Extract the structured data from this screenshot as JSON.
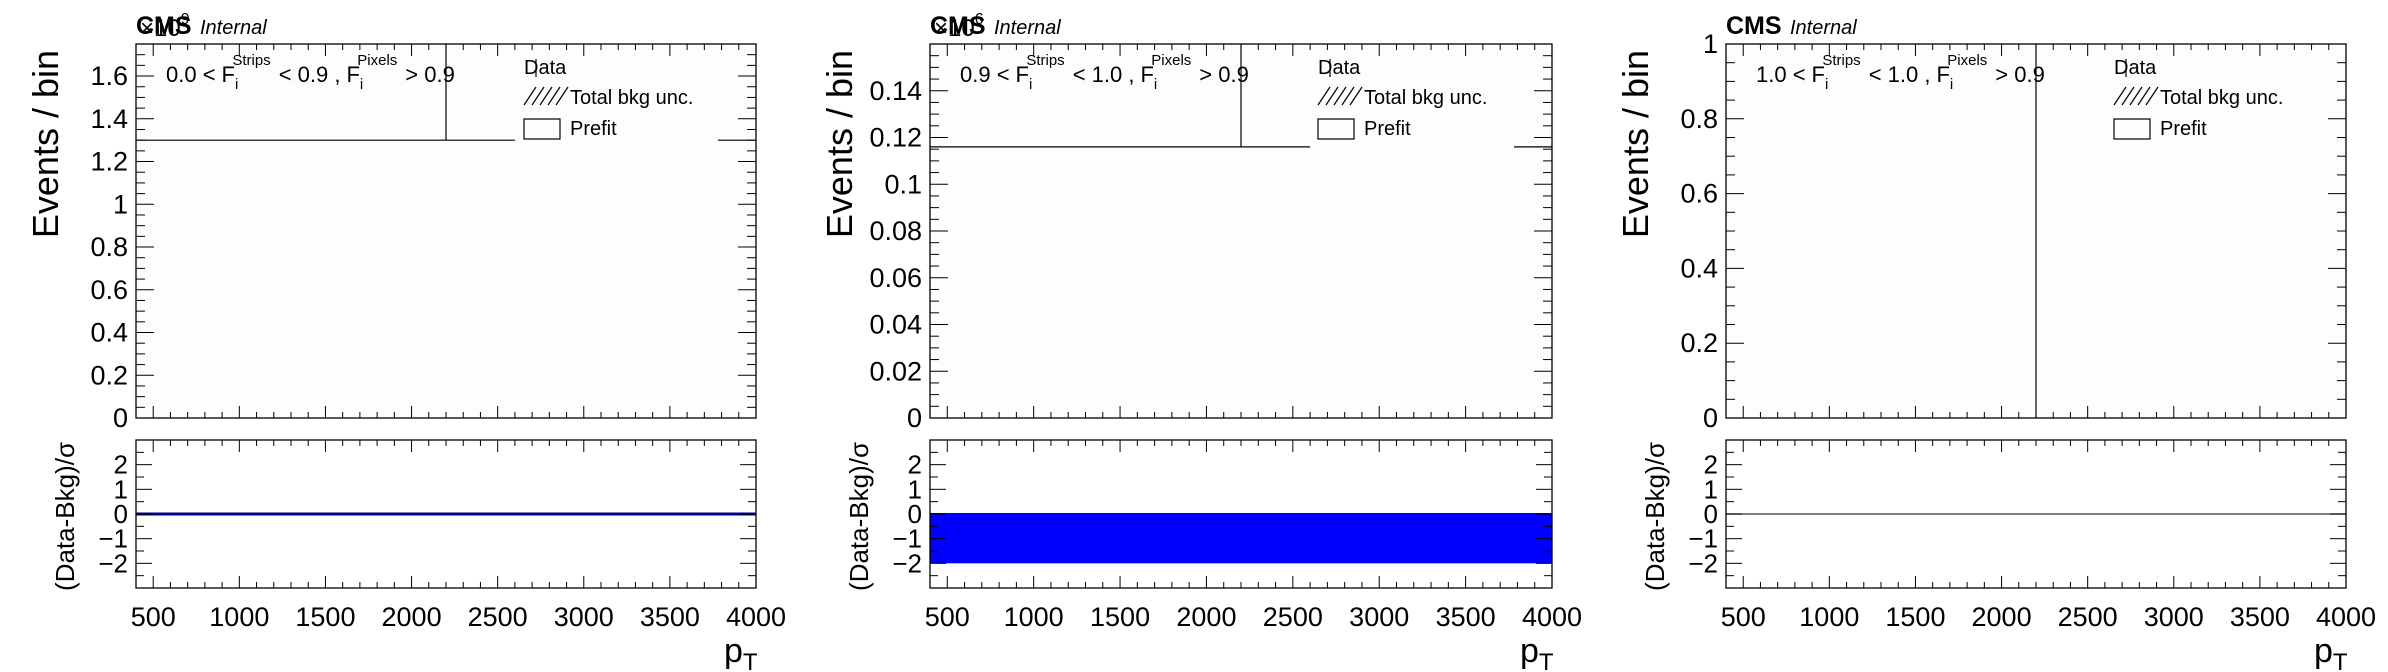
{
  "colors": {
    "frame": "#000000",
    "ratio_band": "#0000ff",
    "ratio_line": "#00008b",
    "plot_bg": "#fdfdfd"
  },
  "chart_data": [
    {
      "type": "line",
      "panel": "left",
      "cms_label": "CMS",
      "internal_label": "Internal",
      "exponent_label": "×10",
      "exponent_power": "9",
      "region": {
        "pre": "0.0 <",
        "F": "F",
        "sub": "i",
        "sup1": "Strips",
        "mid": "< 0.9 ,",
        "sup2": "Pixels",
        "post": "> 0.9"
      },
      "legend": {
        "data": "Data",
        "total": "Total bkg unc.",
        "prefit": "Prefit"
      },
      "ylabel": "Events / bin",
      "ratio_ylabel": "(Data-Bkg)/σ",
      "xlabel": "p",
      "xlabel_sub": "T",
      "xlim": [
        400,
        4000
      ],
      "ylim": [
        0,
        1.75
      ],
      "ratio_ylim": [
        -3,
        3
      ],
      "xticks": [
        "500",
        "1000",
        "1500",
        "2000",
        "2500",
        "3000",
        "3500",
        "4000"
      ],
      "yticks": [
        "0",
        "0.2",
        "0.4",
        "0.6",
        "0.8",
        "1",
        "1.2",
        "1.4",
        "1.6"
      ],
      "ratio_yticks": [
        "−2",
        "−1",
        "0",
        "1",
        "2"
      ],
      "prefit_level": 1.3,
      "prefit_x": [
        400,
        2600
      ],
      "vertical_line_x": 2200,
      "ratio_band": [
        0,
        0
      ],
      "ratio_line": 0
    },
    {
      "type": "line",
      "panel": "center",
      "cms_label": "CMS",
      "internal_label": "Internal",
      "exponent_label": "×10",
      "exponent_power": "6",
      "region": {
        "pre": "0.9 <",
        "F": "F",
        "sub": "i",
        "sup1": "Strips",
        "mid": "< 1.0 ,",
        "sup2": "Pixels",
        "post": "> 0.9"
      },
      "legend": {
        "data": "Data",
        "total": "Total bkg unc.",
        "prefit": "Prefit"
      },
      "ylabel": "Events / bin",
      "ratio_ylabel": "(Data-Bkg)/σ",
      "xlabel": "p",
      "xlabel_sub": "T",
      "xlim": [
        400,
        4000
      ],
      "ylim": [
        0,
        0.16
      ],
      "ratio_ylim": [
        -3,
        3
      ],
      "xticks": [
        "500",
        "1000",
        "1500",
        "2000",
        "2500",
        "3000",
        "3500",
        "4000"
      ],
      "yticks": [
        "0",
        "0.02",
        "0.04",
        "0.06",
        "0.08",
        "0.1",
        "0.12",
        "0.14"
      ],
      "ratio_yticks": [
        "−2",
        "−1",
        "0",
        "1",
        "2"
      ],
      "prefit_level": 0.116,
      "prefit_x": [
        400,
        2600
      ],
      "vertical_line_x": 2200,
      "ratio_band": [
        -2,
        0
      ],
      "ratio_line": null
    },
    {
      "type": "line",
      "panel": "right",
      "cms_label": "CMS",
      "internal_label": "Internal",
      "exponent_label": "",
      "exponent_power": "",
      "region": {
        "pre": "1.0 <",
        "F": "F",
        "sub": "i",
        "sup1": "Strips",
        "mid": "< 1.0 ,",
        "sup2": "Pixels",
        "post": "> 0.9"
      },
      "legend": {
        "data": "Data",
        "total": "Total bkg unc.",
        "prefit": "Prefit"
      },
      "ylabel": "Events / bin",
      "ratio_ylabel": "(Data-Bkg)/σ",
      "xlabel": "p",
      "xlabel_sub": "T",
      "xlim": [
        400,
        4000
      ],
      "ylim": [
        0,
        1
      ],
      "ratio_ylim": [
        -3,
        3
      ],
      "xticks": [
        "500",
        "1000",
        "1500",
        "2000",
        "2500",
        "3000",
        "3500",
        "4000"
      ],
      "yticks": [
        "0",
        "0.2",
        "0.4",
        "0.6",
        "0.8",
        "1"
      ],
      "ratio_yticks": [
        "−2",
        "−1",
        "0",
        "1",
        "2"
      ],
      "prefit_level": null,
      "prefit_x": null,
      "vertical_line_x": 2200,
      "ratio_band": null,
      "ratio_line": 0
    }
  ]
}
